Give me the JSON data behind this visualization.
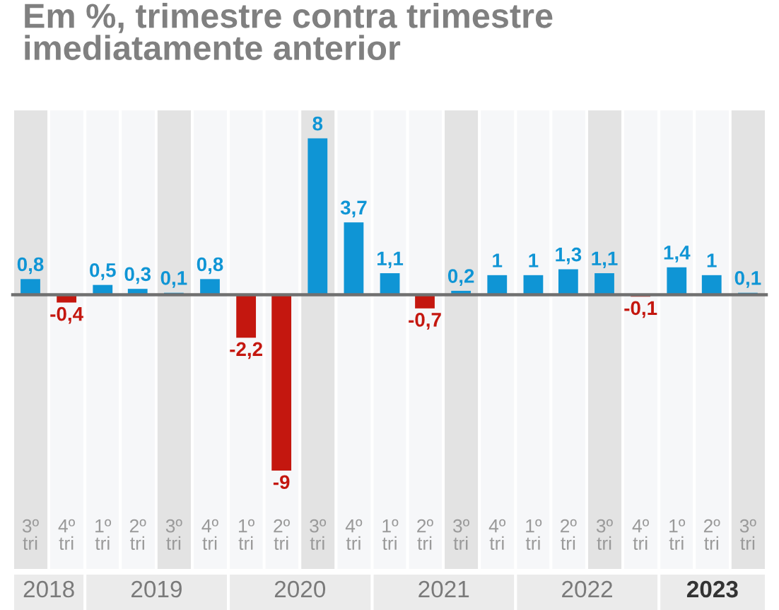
{
  "chart_data": {
    "type": "bar",
    "title": "Em %, trimestre contra trimestre\nimediatamente anterior",
    "x": [
      "2018-08-15",
      "2018-11-15",
      "2019-02-15",
      "2019-05-15",
      "2019-08-15",
      "2019-11-15",
      "2020-02-15",
      "2020-05-15",
      "2020-08-15",
      "2020-11-15",
      "2021-02-15",
      "2021-05-15",
      "2021-08-15",
      "2021-11-15",
      "2022-02-15",
      "2022-05-15",
      "2022-08-15",
      "2022-11-15",
      "2023-02-15",
      "2023-05-15",
      "2023-08-15"
    ],
    "values": [
      0.8,
      -0.4,
      0.5,
      0.3,
      0.1,
      0.8,
      -2.2,
      -9,
      8,
      3.7,
      1.1,
      -0.7,
      0.2,
      1,
      1,
      1.3,
      1.1,
      -0.1,
      1.4,
      1,
      0.1
    ],
    "colors": [
      "#0f95d5",
      "#c4170f",
      "#0f95d5",
      "#0f95d5",
      "#0f95d5",
      "#0f95d5",
      "#c4170f",
      "#c4170f",
      "#0f95d5",
      "#0f95d5",
      "#0f95d5",
      "#c4170f",
      "#0f95d5",
      "#0f95d5",
      "#0f95d5",
      "#0f95d5",
      "#0f95d5",
      "#c4170f",
      "#0f95d5",
      "#0f95d5",
      "#0f95d5"
    ],
    "value_labels": [
      "0,8",
      "-0,4",
      "0,5",
      "0,3",
      "0,1",
      "0,8",
      "-2,2",
      "-9",
      "8",
      "3,7",
      "1,1",
      "-0,7",
      "0,2",
      "1",
      "1",
      "1,3",
      "1,1",
      "-0,1",
      "1,4",
      "1",
      "0,1"
    ],
    "xlim": [
      "2018-07-01",
      "2023-10-01"
    ],
    "xticks": [
      {
        "value": "2018-08-15",
        "label": "3º\ntri"
      },
      {
        "value": "2018-11-15",
        "label": "4º\ntri"
      },
      {
        "value": "2019-02-15",
        "label": "1º\ntri"
      },
      {
        "value": "2019-05-15",
        "label": "2º\ntri"
      },
      {
        "value": "2019-08-15",
        "label": "3º\ntri"
      },
      {
        "value": "2019-11-15",
        "label": "4º\ntri"
      },
      {
        "value": "2020-02-15",
        "label": "1º\ntri"
      },
      {
        "value": "2020-05-15",
        "label": "2º\ntri"
      },
      {
        "value": "2020-08-15",
        "label": "3º\ntri"
      },
      {
        "value": "2020-11-15",
        "label": "4º\ntri"
      },
      {
        "value": "2021-02-15",
        "label": "1º\ntri"
      },
      {
        "value": "2021-05-15",
        "label": "2º\ntri"
      },
      {
        "value": "2021-08-15",
        "label": "3º\ntri"
      },
      {
        "value": "2021-11-15",
        "label": "4º\ntri"
      },
      {
        "value": "2022-02-15",
        "label": "1º\ntri"
      },
      {
        "value": "2022-05-15",
        "label": "2º\ntri"
      },
      {
        "value": "2022-08-15",
        "label": "3º\ntri"
      },
      {
        "value": "2022-11-15",
        "label": "4º\ntri"
      },
      {
        "value": "2023-02-15",
        "label": "1º\ntri"
      },
      {
        "value": "2023-05-15",
        "label": "2º\ntri"
      },
      {
        "value": "2023-08-15",
        "label": "3º\ntri"
      }
    ],
    "x2lim": [
      "2018-07-01",
      "2023-10-01"
    ],
    "x2ticks": [
      {
        "value": "2018-10-01",
        "label": "2018"
      },
      {
        "value": "2019-07-02",
        "label": "2019"
      },
      {
        "value": "2020-07-01",
        "label": "2020"
      },
      {
        "value": "2021-07-02",
        "label": "2021"
      },
      {
        "value": "2022-07-02",
        "label": "2022"
      },
      {
        "value": "2023-05-17",
        "label": "2023"
      }
    ],
    "ylim": [
      -14.1,
      9.5
    ],
    "tick_labels": "x",
    "bands": [
      {
        "axis": "x",
        "from": "2018-07-01",
        "to": "2018-10-01",
        "color": "#e3e3e3"
      },
      {
        "axis": "x",
        "from": "2018-10-01",
        "to": "2019-01-01",
        "color": "#f6f7f9"
      },
      {
        "axis": "x",
        "from": "2019-01-01",
        "to": "2019-04-01",
        "color": "#f6f7f9"
      },
      {
        "axis": "x",
        "from": "2019-04-01",
        "to": "2019-07-01",
        "color": "#f6f7f9"
      },
      {
        "axis": "x",
        "from": "2019-07-01",
        "to": "2019-10-01",
        "color": "#e3e3e3"
      },
      {
        "axis": "x",
        "from": "2019-10-01",
        "to": "2020-01-01",
        "color": "#f6f7f9"
      },
      {
        "axis": "x",
        "from": "2020-01-01",
        "to": "2020-04-01",
        "color": "#f6f7f9"
      },
      {
        "axis": "x",
        "from": "2020-04-01",
        "to": "2020-07-01",
        "color": "#f6f7f9"
      },
      {
        "axis": "x",
        "from": "2020-07-01",
        "to": "2020-10-01",
        "color": "#e3e3e3"
      },
      {
        "axis": "x",
        "from": "2020-10-01",
        "to": "2021-01-01",
        "color": "#f6f7f9"
      },
      {
        "axis": "x",
        "from": "2021-01-01",
        "to": "2021-04-01",
        "color": "#f6f7f9"
      },
      {
        "axis": "x",
        "from": "2021-04-01",
        "to": "2021-07-01",
        "color": "#f6f7f9"
      },
      {
        "axis": "x",
        "from": "2021-07-01",
        "to": "2021-10-01",
        "color": "#e3e3e3"
      },
      {
        "axis": "x",
        "from": "2021-10-01",
        "to": "2022-01-01",
        "color": "#f6f7f9"
      },
      {
        "axis": "x",
        "from": "2022-01-01",
        "to": "2022-04-01",
        "color": "#f6f7f9"
      },
      {
        "axis": "x",
        "from": "2022-04-01",
        "to": "2022-07-01",
        "color": "#f6f7f9"
      },
      {
        "axis": "x",
        "from": "2022-07-01",
        "to": "2022-10-01",
        "color": "#e3e3e3"
      },
      {
        "axis": "x",
        "from": "2022-10-01",
        "to": "2023-01-01",
        "color": "#f6f7f9"
      },
      {
        "axis": "x",
        "from": "2023-01-01",
        "to": "2023-04-01",
        "color": "#f6f7f9"
      },
      {
        "axis": "x",
        "from": "2023-04-01",
        "to": "2023-07-01",
        "color": "#f6f7f9"
      },
      {
        "axis": "x",
        "from": "2023-07-01",
        "to": "2023-10-01",
        "color": "#e3e3e3"
      }
    ]
  }
}
